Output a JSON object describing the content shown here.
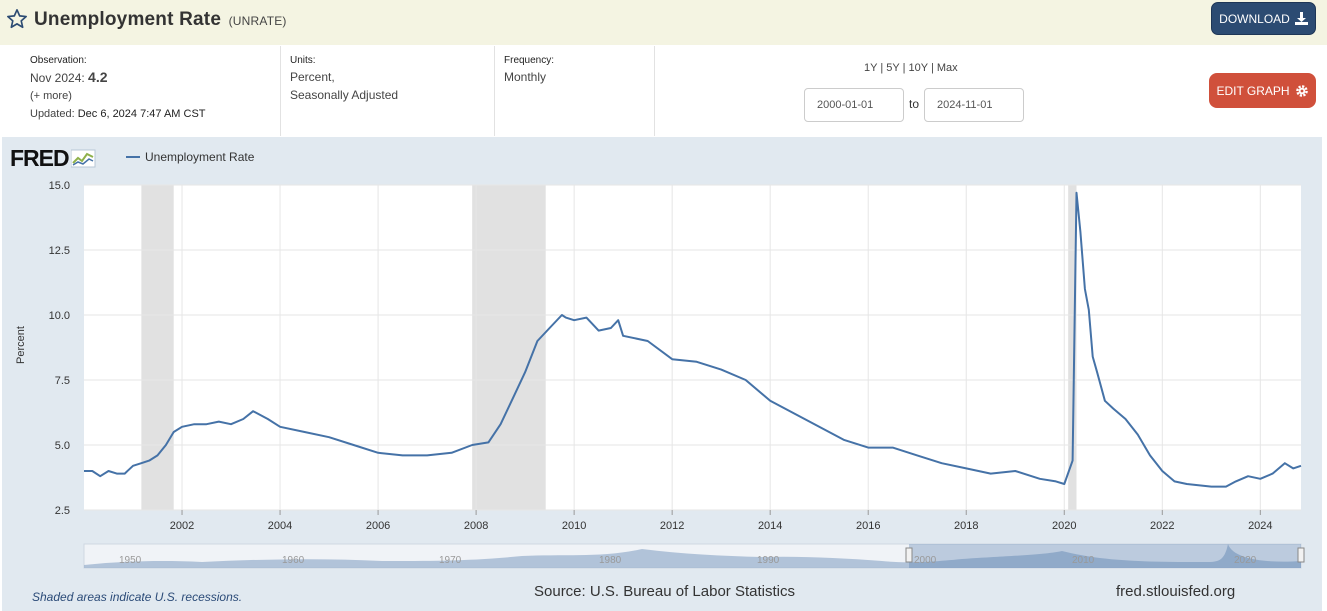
{
  "header": {
    "title": "Unemployment Rate",
    "series_code": "(UNRATE)",
    "download_label": "DOWNLOAD",
    "edit_graph_label": "EDIT GRAPH"
  },
  "meta": {
    "observation_label": "Observation:",
    "observation_period": "Nov 2024:",
    "observation_value": "4.2",
    "more_link": "(+ more)",
    "updated_label": "Updated:",
    "updated_value": "Dec 6, 2024 7:47 AM CST",
    "units_label": "Units:",
    "units_line1": "Percent,",
    "units_line2": "Seasonally Adjusted",
    "frequency_label": "Frequency:",
    "frequency_value": "Monthly"
  },
  "range": {
    "options": [
      "1Y",
      "5Y",
      "10Y",
      "Max"
    ],
    "separator": "|",
    "start_date": "2000-01-01",
    "end_date": "2024-11-01",
    "to_label": "to"
  },
  "footer": {
    "recession_note": "Shaded areas indicate U.S. recessions.",
    "source": "Source: U.S. Bureau of Labor Statistics",
    "url": "fred.stlouisfed.org"
  },
  "logo_text": "FRED",
  "colors": {
    "line": "#4572a7",
    "recession": "#e1e1e1",
    "download_bg": "#2c4b72",
    "edit_bg": "#d0503b",
    "chart_bg": "#e1e9f0",
    "title_bg": "#f4f4e2"
  },
  "chart_data": {
    "type": "line",
    "title": "",
    "legend": [
      "Unemployment Rate"
    ],
    "ylabel": "Percent",
    "xlabel": "",
    "ylim": [
      2.5,
      15.0
    ],
    "yticks": [
      "15.0",
      "12.5",
      "10.0",
      "7.5",
      "5.0",
      "2.5"
    ],
    "ytick_values": [
      15.0,
      12.5,
      10.0,
      7.5,
      5.0,
      2.5
    ],
    "xticks": [
      "2002",
      "2004",
      "2006",
      "2008",
      "2010",
      "2012",
      "2014",
      "2016",
      "2018",
      "2020",
      "2022",
      "2024"
    ],
    "xtick_values": [
      2002,
      2004,
      2006,
      2008,
      2010,
      2012,
      2014,
      2016,
      2018,
      2020,
      2022,
      2024
    ],
    "xlim": [
      2000.0,
      2024.83
    ],
    "recessions": [
      [
        2001.17,
        2001.83
      ],
      [
        2007.92,
        2009.42
      ],
      [
        2020.08,
        2020.25
      ]
    ],
    "series": [
      {
        "name": "Unemployment Rate",
        "x": [
          2000.0,
          2000.17,
          2000.33,
          2000.5,
          2000.67,
          2000.83,
          2001.0,
          2001.17,
          2001.33,
          2001.5,
          2001.67,
          2001.83,
          2002.0,
          2002.25,
          2002.5,
          2002.75,
          2003.0,
          2003.25,
          2003.45,
          2003.75,
          2004.0,
          2004.5,
          2005.0,
          2005.5,
          2006.0,
          2006.5,
          2007.0,
          2007.5,
          2007.92,
          2008.25,
          2008.5,
          2008.75,
          2009.0,
          2009.25,
          2009.5,
          2009.75,
          2009.83,
          2010.0,
          2010.25,
          2010.5,
          2010.75,
          2010.9,
          2011.0,
          2011.5,
          2012.0,
          2012.5,
          2013.0,
          2013.5,
          2014.0,
          2014.5,
          2015.0,
          2015.5,
          2016.0,
          2016.5,
          2017.0,
          2017.5,
          2018.0,
          2018.5,
          2019.0,
          2019.5,
          2019.83,
          2020.0,
          2020.17,
          2020.25,
          2020.33,
          2020.42,
          2020.5,
          2020.58,
          2020.67,
          2020.83,
          2021.0,
          2021.25,
          2021.5,
          2021.75,
          2022.0,
          2022.25,
          2022.5,
          2023.0,
          2023.3,
          2023.5,
          2023.75,
          2024.0,
          2024.25,
          2024.5,
          2024.67,
          2024.83
        ],
        "values": [
          4.0,
          4.0,
          3.8,
          4.0,
          3.9,
          3.9,
          4.2,
          4.3,
          4.4,
          4.6,
          5.0,
          5.5,
          5.7,
          5.8,
          5.8,
          5.9,
          5.8,
          6.0,
          6.3,
          6.0,
          5.7,
          5.5,
          5.3,
          5.0,
          4.7,
          4.6,
          4.6,
          4.7,
          5.0,
          5.1,
          5.8,
          6.8,
          7.8,
          9.0,
          9.5,
          10.0,
          9.9,
          9.8,
          9.9,
          9.4,
          9.5,
          9.8,
          9.2,
          9.0,
          8.3,
          8.2,
          7.9,
          7.5,
          6.7,
          6.2,
          5.7,
          5.2,
          4.9,
          4.9,
          4.6,
          4.3,
          4.1,
          3.9,
          4.0,
          3.7,
          3.6,
          3.5,
          4.4,
          14.7,
          13.2,
          11.0,
          10.2,
          8.4,
          7.8,
          6.7,
          6.4,
          6.0,
          5.4,
          4.6,
          4.0,
          3.6,
          3.5,
          3.4,
          3.4,
          3.6,
          3.8,
          3.7,
          3.9,
          4.3,
          4.1,
          4.2
        ]
      }
    ]
  }
}
